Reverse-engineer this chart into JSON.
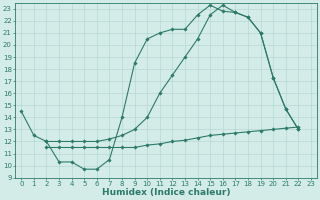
{
  "line1_x": [
    0,
    1,
    2,
    3,
    4,
    5,
    6,
    7,
    8,
    9,
    10,
    11,
    12,
    13,
    14,
    15,
    16,
    17,
    18,
    19,
    20,
    21,
    22
  ],
  "line1_y": [
    14.5,
    12.5,
    12.0,
    10.3,
    10.3,
    9.7,
    9.7,
    10.5,
    14.0,
    18.5,
    20.5,
    21.0,
    21.3,
    21.3,
    22.5,
    23.3,
    22.8,
    22.7,
    22.3,
    21.0,
    17.3,
    14.7,
    13.0
  ],
  "line2_x": [
    2,
    3,
    4,
    5,
    6,
    7,
    8,
    9,
    10,
    11,
    12,
    13,
    14,
    15,
    16,
    17,
    18,
    19,
    20,
    21,
    22
  ],
  "line2_y": [
    12.0,
    12.0,
    12.0,
    12.0,
    12.0,
    12.2,
    12.5,
    13.0,
    14.0,
    16.0,
    17.5,
    19.0,
    20.5,
    22.5,
    23.3,
    22.7,
    22.3,
    21.0,
    17.3,
    14.7,
    13.0
  ],
  "line3_x": [
    2,
    3,
    4,
    5,
    6,
    7,
    8,
    9,
    10,
    11,
    12,
    13,
    14,
    15,
    16,
    17,
    18,
    19,
    20,
    21,
    22
  ],
  "line3_y": [
    11.5,
    11.5,
    11.5,
    11.5,
    11.5,
    11.5,
    11.5,
    11.5,
    11.7,
    11.8,
    12.0,
    12.1,
    12.3,
    12.5,
    12.6,
    12.7,
    12.8,
    12.9,
    13.0,
    13.1,
    13.2
  ],
  "line_color": "#2d7a6a",
  "bg_color": "#d4ece8",
  "grid_color": "#b0d4cf",
  "xlabel": "Humidex (Indice chaleur)",
  "xlim": [
    -0.5,
    23.5
  ],
  "ylim": [
    9,
    23.5
  ],
  "xticks": [
    0,
    1,
    2,
    3,
    4,
    5,
    6,
    7,
    8,
    9,
    10,
    11,
    12,
    13,
    14,
    15,
    16,
    17,
    18,
    19,
    20,
    21,
    22,
    23
  ],
  "yticks": [
    9,
    10,
    11,
    12,
    13,
    14,
    15,
    16,
    17,
    18,
    19,
    20,
    21,
    22,
    23
  ],
  "marker": "D",
  "markersize": 1.8,
  "linewidth": 0.8,
  "xlabel_fontsize": 6.5,
  "tick_fontsize": 5.0
}
